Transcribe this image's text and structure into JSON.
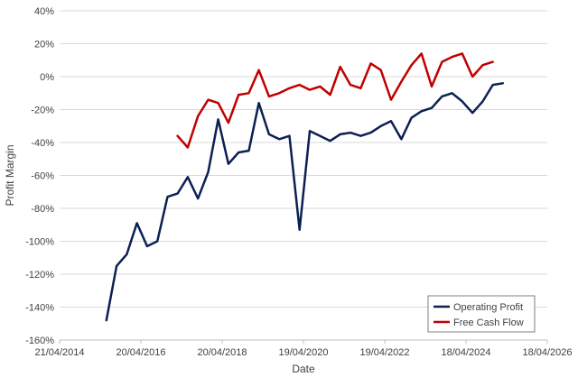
{
  "chart_data": {
    "type": "line",
    "title": "",
    "xlabel": "Date",
    "ylabel": "Profit Margin",
    "x_ticks": [
      "21/04/2014",
      "20/04/2016",
      "20/04/2018",
      "19/04/2020",
      "19/04/2022",
      "18/04/2024",
      "18/04/2026"
    ],
    "y_ticks": [
      "40%",
      "20%",
      "0%",
      "-20%",
      "-40%",
      "-60%",
      "-80%",
      "-100%",
      "-120%",
      "-140%",
      "-160%"
    ],
    "ylim": [
      -160,
      40
    ],
    "xlim": [
      "2014-04-21",
      "2026-04-18"
    ],
    "y_unit": "%",
    "grid": "horizontal",
    "legend_position": "bottom-right",
    "series": [
      {
        "name": "Operating Profit",
        "color": "#0c2054",
        "points": [
          [
            "2015-06-15",
            -148
          ],
          [
            "2015-09-15",
            -115
          ],
          [
            "2015-12-15",
            -108
          ],
          [
            "2016-03-15",
            -89
          ],
          [
            "2016-06-15",
            -103
          ],
          [
            "2016-09-15",
            -100
          ],
          [
            "2016-12-15",
            -73
          ],
          [
            "2017-03-15",
            -71
          ],
          [
            "2017-06-15",
            -61
          ],
          [
            "2017-09-15",
            -74
          ],
          [
            "2017-12-15",
            -58
          ],
          [
            "2018-03-15",
            -26
          ],
          [
            "2018-06-15",
            -53
          ],
          [
            "2018-09-15",
            -46
          ],
          [
            "2018-12-15",
            -45
          ],
          [
            "2019-03-15",
            -16
          ],
          [
            "2019-06-15",
            -35
          ],
          [
            "2019-09-15",
            -38
          ],
          [
            "2019-12-15",
            -36
          ],
          [
            "2020-03-15",
            -93
          ],
          [
            "2020-06-15",
            -33
          ],
          [
            "2020-09-15",
            -36
          ],
          [
            "2020-12-15",
            -39
          ],
          [
            "2021-03-15",
            -35
          ],
          [
            "2021-06-15",
            -34
          ],
          [
            "2021-09-15",
            -36
          ],
          [
            "2021-12-15",
            -34
          ],
          [
            "2022-03-15",
            -30
          ],
          [
            "2022-06-15",
            -27
          ],
          [
            "2022-09-15",
            -38
          ],
          [
            "2022-12-15",
            -25
          ],
          [
            "2023-03-15",
            -21
          ],
          [
            "2023-06-15",
            -19
          ],
          [
            "2023-09-15",
            -12
          ],
          [
            "2023-12-15",
            -10
          ],
          [
            "2024-03-15",
            -15
          ],
          [
            "2024-06-15",
            -22
          ],
          [
            "2024-09-15",
            -15
          ],
          [
            "2024-12-15",
            -5
          ],
          [
            "2025-03-15",
            -4
          ]
        ]
      },
      {
        "name": "Free Cash Flow",
        "color": "#c00000",
        "points": [
          [
            "2017-03-15",
            -36
          ],
          [
            "2017-06-15",
            -43
          ],
          [
            "2017-09-15",
            -24
          ],
          [
            "2017-12-15",
            -14
          ],
          [
            "2018-03-15",
            -16
          ],
          [
            "2018-06-15",
            -28
          ],
          [
            "2018-09-15",
            -11
          ],
          [
            "2018-12-15",
            -10
          ],
          [
            "2019-03-15",
            4
          ],
          [
            "2019-06-15",
            -12
          ],
          [
            "2019-09-15",
            -10
          ],
          [
            "2019-12-15",
            -7
          ],
          [
            "2020-03-15",
            -5
          ],
          [
            "2020-06-15",
            -8
          ],
          [
            "2020-09-15",
            -6
          ],
          [
            "2020-12-15",
            -11
          ],
          [
            "2021-03-15",
            6
          ],
          [
            "2021-06-15",
            -5
          ],
          [
            "2021-09-15",
            -7
          ],
          [
            "2021-12-15",
            8
          ],
          [
            "2022-03-15",
            4
          ],
          [
            "2022-06-15",
            -14
          ],
          [
            "2022-09-15",
            -3
          ],
          [
            "2022-12-15",
            7
          ],
          [
            "2023-03-15",
            14
          ],
          [
            "2023-06-15",
            -6
          ],
          [
            "2023-09-15",
            9
          ],
          [
            "2023-12-15",
            12
          ],
          [
            "2024-03-15",
            14
          ],
          [
            "2024-06-15",
            0
          ],
          [
            "2024-09-15",
            7
          ],
          [
            "2024-12-15",
            9
          ]
        ]
      }
    ]
  }
}
